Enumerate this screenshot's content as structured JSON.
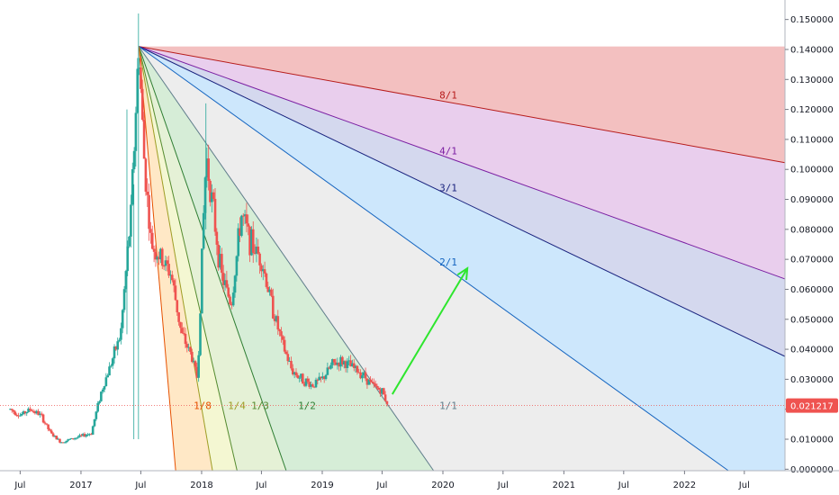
{
  "chart_data": {
    "type": "candlestick",
    "title": "",
    "overlay": "Gann fan",
    "current_price": {
      "value": 0.021217,
      "label": "0.021217",
      "color": "#ef5350"
    },
    "y_axis": {
      "ylim": [
        -0.0005,
        0.1565
      ],
      "ticks": [
        {
          "value": 0.15,
          "label": "0.150000"
        },
        {
          "value": 0.14,
          "label": "0.140000"
        },
        {
          "value": 0.13,
          "label": "0.130000"
        },
        {
          "value": 0.12,
          "label": "0.120000"
        },
        {
          "value": 0.11,
          "label": "0.110000"
        },
        {
          "value": 0.1,
          "label": "0.100000"
        },
        {
          "value": 0.09,
          "label": "0.090000"
        },
        {
          "value": 0.08,
          "label": "0.080000"
        },
        {
          "value": 0.07,
          "label": "0.070000"
        },
        {
          "value": 0.06,
          "label": "0.060000"
        },
        {
          "value": 0.05,
          "label": "0.050000"
        },
        {
          "value": 0.04,
          "label": "0.040000"
        },
        {
          "value": 0.03,
          "label": "0.030000"
        },
        {
          "value": 0.02,
          "label": "0.020000"
        },
        {
          "value": 0.01,
          "label": "0.010000"
        },
        {
          "value": 0.0,
          "label": "0.000000"
        }
      ]
    },
    "x_axis": {
      "xlim": [
        "2016-05-01",
        "2022-11-01"
      ],
      "ticks": [
        {
          "date": "2016-07-01",
          "label": "Jul"
        },
        {
          "date": "2017-01-01",
          "label": "2017"
        },
        {
          "date": "2017-07-01",
          "label": "Jul"
        },
        {
          "date": "2018-01-01",
          "label": "2018"
        },
        {
          "date": "2018-07-01",
          "label": "Jul"
        },
        {
          "date": "2019-01-01",
          "label": "2019"
        },
        {
          "date": "2019-07-01",
          "label": "Jul"
        },
        {
          "date": "2020-01-01",
          "label": "2020"
        },
        {
          "date": "2020-07-01",
          "label": "Jul"
        },
        {
          "date": "2021-01-01",
          "label": "2021"
        },
        {
          "date": "2021-07-01",
          "label": "Jul"
        },
        {
          "date": "2022-01-01",
          "label": "2022"
        },
        {
          "date": "2022-07-01",
          "label": "Jul"
        }
      ]
    },
    "price_series": [
      {
        "date": "2016-06-01",
        "close": 0.02
      },
      {
        "date": "2016-07-01",
        "close": 0.018
      },
      {
        "date": "2016-08-01",
        "close": 0.02
      },
      {
        "date": "2016-09-01",
        "close": 0.018
      },
      {
        "date": "2016-10-01",
        "close": 0.012
      },
      {
        "date": "2016-11-01",
        "close": 0.009
      },
      {
        "date": "2016-12-01",
        "close": 0.01
      },
      {
        "date": "2017-01-01",
        "close": 0.011
      },
      {
        "date": "2017-02-01",
        "close": 0.012
      },
      {
        "date": "2017-03-01",
        "close": 0.025
      },
      {
        "date": "2017-04-01",
        "close": 0.035
      },
      {
        "date": "2017-05-01",
        "close": 0.045
      },
      {
        "date": "2017-06-01",
        "close": 0.085
      },
      {
        "date": "2017-06-25",
        "close": 0.141
      },
      {
        "date": "2017-07-10",
        "close": 0.105
      },
      {
        "date": "2017-08-01",
        "close": 0.075
      },
      {
        "date": "2017-09-01",
        "close": 0.07
      },
      {
        "date": "2017-10-01",
        "close": 0.065
      },
      {
        "date": "2017-11-01",
        "close": 0.045
      },
      {
        "date": "2017-12-01",
        "close": 0.038
      },
      {
        "date": "2017-12-20",
        "close": 0.03
      },
      {
        "date": "2018-01-05",
        "close": 0.08
      },
      {
        "date": "2018-01-15",
        "close": 0.105
      },
      {
        "date": "2018-02-01",
        "close": 0.09
      },
      {
        "date": "2018-03-01",
        "close": 0.065
      },
      {
        "date": "2018-04-01",
        "close": 0.055
      },
      {
        "date": "2018-05-01",
        "close": 0.085
      },
      {
        "date": "2018-06-01",
        "close": 0.075
      },
      {
        "date": "2018-07-01",
        "close": 0.07
      },
      {
        "date": "2018-08-01",
        "close": 0.055
      },
      {
        "date": "2018-09-01",
        "close": 0.042
      },
      {
        "date": "2018-10-01",
        "close": 0.033
      },
      {
        "date": "2018-11-01",
        "close": 0.03
      },
      {
        "date": "2018-12-01",
        "close": 0.028
      },
      {
        "date": "2019-01-01",
        "close": 0.03
      },
      {
        "date": "2019-02-01",
        "close": 0.035
      },
      {
        "date": "2019-03-01",
        "close": 0.036
      },
      {
        "date": "2019-04-01",
        "close": 0.034
      },
      {
        "date": "2019-05-01",
        "close": 0.032
      },
      {
        "date": "2019-06-01",
        "close": 0.028
      },
      {
        "date": "2019-07-01",
        "close": 0.026
      },
      {
        "date": "2019-07-20",
        "close": 0.021217
      }
    ],
    "gann_fan": {
      "origin": {
        "date": "2017-06-25",
        "value": 0.141
      },
      "unit_line": {
        "end_date": "2019-07-20",
        "end_value": 0.021217
      },
      "lines": [
        {
          "label": "8/1",
          "ratio": 0.125,
          "color": "#b71c1c",
          "fill": "#e57373"
        },
        {
          "label": "4/1",
          "ratio": 0.25,
          "color": "#7b1fa2",
          "fill": "#ce93d8"
        },
        {
          "label": "3/1",
          "ratio": 0.3333,
          "color": "#1a237e",
          "fill": "#9fa8da"
        },
        {
          "label": "2/1",
          "ratio": 0.5,
          "color": "#1565c0",
          "fill": "#90caf9"
        },
        {
          "label": "1/1",
          "ratio": 1,
          "color": "#607d8b",
          "fill": "#d6d6d6"
        },
        {
          "label": "1/2",
          "ratio": 2,
          "color": "#2e7d32",
          "fill": "#a5d6a7"
        },
        {
          "label": "1/3",
          "ratio": 3,
          "color": "#558b2f",
          "fill": "#c5e1a5"
        },
        {
          "label": "1/4",
          "ratio": 4,
          "color": "#9e9d24",
          "fill": "#e6ee9c"
        },
        {
          "label": "1/8",
          "ratio": 8,
          "color": "#e65100",
          "fill": "#ffcc80"
        }
      ]
    },
    "annotation": {
      "type": "arrow",
      "color": "#2ee62e",
      "from": {
        "date": "2019-08-01",
        "value": 0.025
      },
      "to": {
        "date": "2020-03-15",
        "value": 0.067
      }
    },
    "colors": {
      "up": "#26a69a",
      "down": "#ef5350",
      "axis_text": "#131722"
    }
  }
}
